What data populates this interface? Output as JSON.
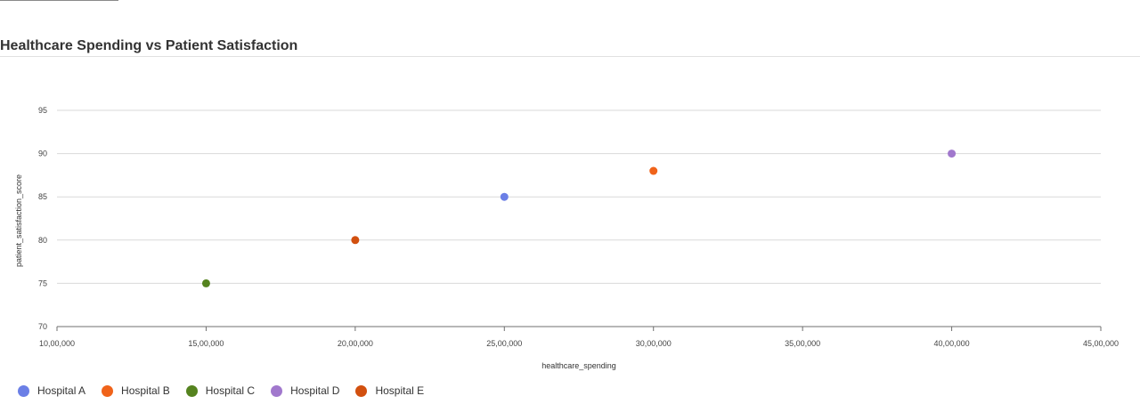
{
  "chart_data": {
    "type": "scatter",
    "title": "Healthcare Spending vs Patient Satisfaction",
    "xlabel": "healthcare_spending",
    "ylabel": "patient_satisfaction_score",
    "xlim": [
      1000000,
      4500000
    ],
    "ylim": [
      70,
      95
    ],
    "x_ticks": [
      1000000,
      1500000,
      2000000,
      2500000,
      3000000,
      3500000,
      4000000,
      4500000
    ],
    "x_tick_labels": [
      "10,00,000",
      "15,00,000",
      "20,00,000",
      "25,00,000",
      "30,00,000",
      "35,00,000",
      "40,00,000",
      "45,00,000"
    ],
    "y_ticks": [
      70,
      75,
      80,
      85,
      90,
      95
    ],
    "y_tick_labels": [
      "70",
      "75",
      "80",
      "85",
      "90",
      "95"
    ],
    "grid": true,
    "legend_position": "bottom-left",
    "series": [
      {
        "name": "Hospital A",
        "color": "#6b7fe6",
        "x": [
          2500000
        ],
        "y": [
          85
        ]
      },
      {
        "name": "Hospital B",
        "color": "#f0631a",
        "x": [
          3000000
        ],
        "y": [
          88
        ]
      },
      {
        "name": "Hospital C",
        "color": "#55831f",
        "x": [
          1500000
        ],
        "y": [
          75
        ]
      },
      {
        "name": "Hospital D",
        "color": "#a178cd",
        "x": [
          4000000
        ],
        "y": [
          90
        ]
      },
      {
        "name": "Hospital E",
        "color": "#d2500f",
        "x": [
          2000000
        ],
        "y": [
          80
        ]
      }
    ]
  }
}
